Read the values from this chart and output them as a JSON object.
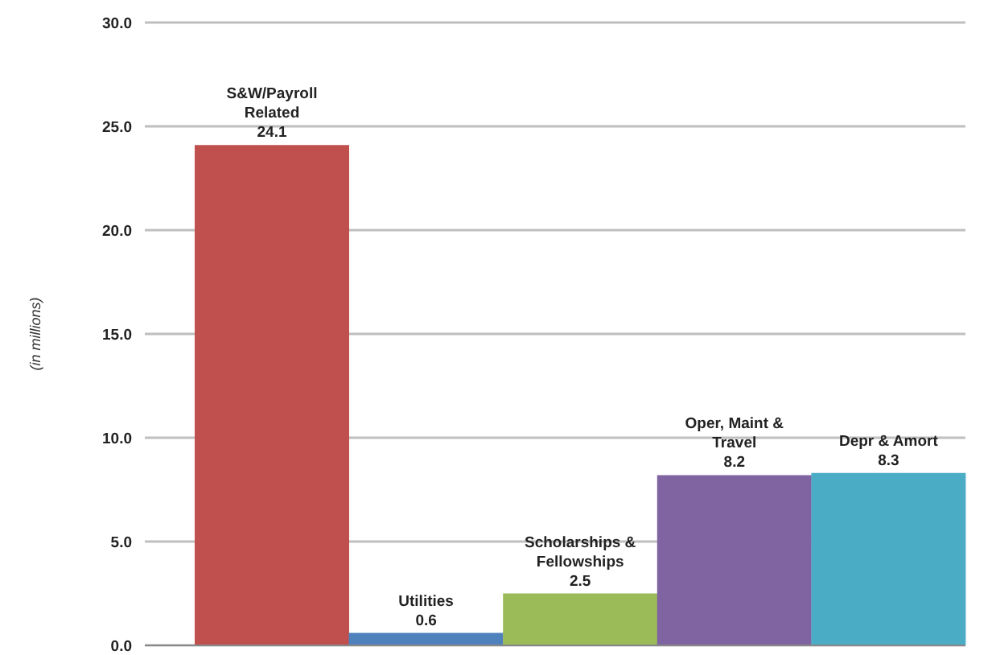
{
  "chart_data": {
    "type": "bar",
    "ylabel": "(in  millions)",
    "categories": [
      "S&W/Payroll Related",
      "Utilities",
      "Scholarships & Fellowships",
      "Oper, Maint & Travel",
      "Depr & Amort"
    ],
    "values": [
      24.1,
      0.6,
      2.5,
      8.2,
      8.3
    ],
    "colors": [
      "#c0504d",
      "#4f81bd",
      "#9bbb59",
      "#8064a2",
      "#4bacc6"
    ],
    "ylim": [
      0,
      30
    ],
    "yticks": [
      {
        "value": 0,
        "label": "0.0"
      },
      {
        "value": 5,
        "label": "5.0"
      },
      {
        "value": 10,
        "label": "10.0"
      },
      {
        "value": 15,
        "label": "15.0"
      },
      {
        "value": 20,
        "label": "20.0"
      },
      {
        "value": 25,
        "label": "25.0"
      },
      {
        "value": 30,
        "label": "30.0"
      }
    ],
    "grid": "y",
    "tick_labels": "y",
    "data_labels": true
  }
}
